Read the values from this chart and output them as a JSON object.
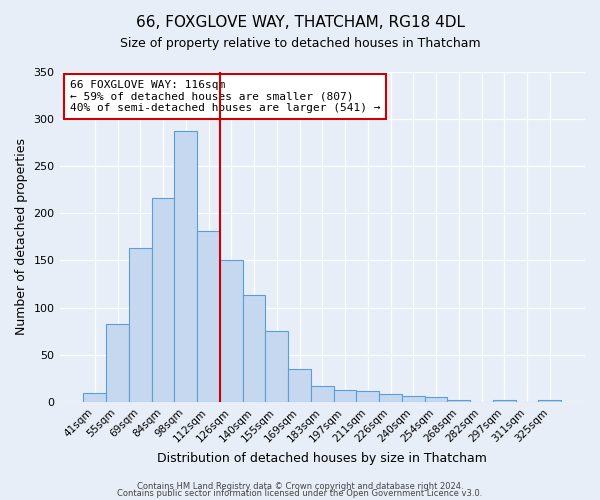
{
  "title": "66, FOXGLOVE WAY, THATCHAM, RG18 4DL",
  "subtitle": "Size of property relative to detached houses in Thatcham",
  "xlabel": "Distribution of detached houses by size in Thatcham",
  "ylabel": "Number of detached properties",
  "categories": [
    "41sqm",
    "55sqm",
    "69sqm",
    "84sqm",
    "98sqm",
    "112sqm",
    "126sqm",
    "140sqm",
    "155sqm",
    "169sqm",
    "183sqm",
    "197sqm",
    "211sqm",
    "226sqm",
    "240sqm",
    "254sqm",
    "268sqm",
    "282sqm",
    "297sqm",
    "311sqm",
    "325sqm"
  ],
  "values": [
    10,
    83,
    163,
    216,
    287,
    181,
    150,
    113,
    75,
    35,
    17,
    13,
    12,
    8,
    6,
    5,
    2,
    0,
    2,
    0,
    2
  ],
  "bar_color": "#c5d8f0",
  "bar_edge_color": "#5a9fd4",
  "vline_x": 5.5,
  "vline_color": "#cc0000",
  "ylim": [
    0,
    350
  ],
  "yticks": [
    0,
    50,
    100,
    150,
    200,
    250,
    300,
    350
  ],
  "annotation_line1": "66 FOXGLOVE WAY: 116sqm",
  "annotation_line2": "← 59% of detached houses are smaller (807)",
  "annotation_line3": "40% of semi-detached houses are larger (541) →",
  "annotation_box_color": "#ffffff",
  "annotation_box_edge": "#cc0000",
  "footer1": "Contains HM Land Registry data © Crown copyright and database right 2024.",
  "footer2": "Contains public sector information licensed under the Open Government Licence v3.0.",
  "bg_color": "#e8eef8"
}
